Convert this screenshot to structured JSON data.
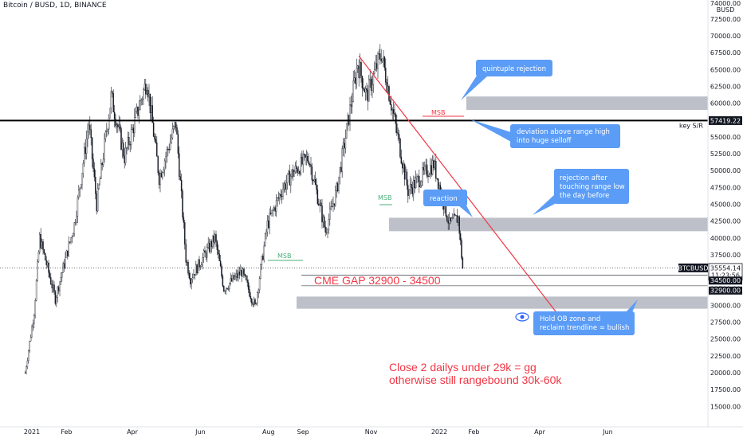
{
  "header": {
    "symbol": "Bitcoin / BUSD, 1D, BINANCE"
  },
  "axis": {
    "currency": "BUSD",
    "top_label": "74000.00",
    "y_ticks": [
      72500,
      70000,
      67500,
      65000,
      62500,
      60000,
      57500,
      55000,
      52500,
      50000,
      47500,
      45000,
      42500,
      40000,
      37500,
      35000,
      32500,
      30000,
      27500,
      25000,
      22500,
      20000,
      17500,
      15000
    ],
    "x_ticks": [
      {
        "label": "2021",
        "date": "2021-01-01"
      },
      {
        "label": "Feb",
        "date": "2021-02-01"
      },
      {
        "label": "Apr",
        "date": "2021-04-01"
      },
      {
        "label": "Jun",
        "date": "2021-06-01"
      },
      {
        "label": "Aug",
        "date": "2021-08-01"
      },
      {
        "label": "Sep",
        "date": "2021-09-01"
      },
      {
        "label": "Nov",
        "date": "2021-11-01"
      },
      {
        "label": "2022",
        "date": "2022-01-01"
      },
      {
        "label": "Feb",
        "date": "2022-02-01"
      },
      {
        "label": "Apr",
        "date": "2022-04-01"
      },
      {
        "label": "Jun",
        "date": "2022-06-01"
      }
    ]
  },
  "price_labels": {
    "key_sr": {
      "value": "57419.22",
      "text": "key S/R"
    },
    "current": {
      "value": "35554.14",
      "text": "BTCBUSD",
      "countdown": "11:23:56"
    },
    "gap_top": "34500.00",
    "gap_bottom": "32900.00"
  },
  "annotations": {
    "quintuple": "quintuple rejection",
    "deviation_1": "deviation above range high",
    "deviation_2": "into huge selloff",
    "reaction": "reaction",
    "rejection_1": "rejection after",
    "rejection_2": "touching range low",
    "rejection_3": "the day before",
    "hold_1": "Hold OB zone and",
    "hold_2": "reclaim trendline = bullish",
    "cme_gap": "CME GAP 32900 - 34500",
    "close_1": "Close 2 dailys under 29k = gg",
    "close_2": "otherwise still rangebound 30k-60k",
    "msb_1": "MSB",
    "msb_2": "MSB",
    "msb_3": "MSB"
  },
  "colors": {
    "up": "#ffffff",
    "down": "#131722",
    "wick": "#131722",
    "zone": "#b2b5be",
    "accent": "#f23645",
    "callout": "#5b9cf6"
  },
  "chart_data": {
    "type": "candlestick",
    "title": "Bitcoin / BUSD, 1D, BINANCE",
    "ylim": [
      12500,
      75000
    ],
    "key_level": 57419.22,
    "last_price": 35554.14,
    "zones": [
      {
        "from": 59000,
        "to": 61000
      },
      {
        "from": 41000,
        "to": 43000
      },
      {
        "from": 29500,
        "to": 31300
      }
    ],
    "cme_gap": [
      32900,
      34500
    ],
    "trendline": [
      {
        "date": "2021-10-21",
        "price": 67000
      },
      {
        "date": "2022-04-25",
        "price": 27000
      }
    ],
    "anchors": [
      {
        "date": "2020-12-26",
        "price": 20000
      },
      {
        "date": "2021-01-03",
        "price": 29000
      },
      {
        "date": "2021-01-08",
        "price": 40000
      },
      {
        "date": "2021-01-22",
        "price": 31000
      },
      {
        "date": "2021-02-08",
        "price": 42000
      },
      {
        "date": "2021-02-21",
        "price": 57000
      },
      {
        "date": "2021-02-28",
        "price": 45000
      },
      {
        "date": "2021-03-13",
        "price": 61000
      },
      {
        "date": "2021-03-25",
        "price": 52000
      },
      {
        "date": "2021-04-14",
        "price": 63500
      },
      {
        "date": "2021-04-25",
        "price": 49000
      },
      {
        "date": "2021-05-10",
        "price": 57000
      },
      {
        "date": "2021-05-19",
        "price": 37000
      },
      {
        "date": "2021-05-23",
        "price": 34000
      },
      {
        "date": "2021-06-14",
        "price": 40000
      },
      {
        "date": "2021-06-22",
        "price": 32500
      },
      {
        "date": "2021-07-08",
        "price": 35000
      },
      {
        "date": "2021-07-20",
        "price": 29800
      },
      {
        "date": "2021-07-31",
        "price": 42000
      },
      {
        "date": "2021-08-14",
        "price": 47500
      },
      {
        "date": "2021-08-22",
        "price": 49500
      },
      {
        "date": "2021-09-06",
        "price": 52000
      },
      {
        "date": "2021-09-21",
        "price": 41000
      },
      {
        "date": "2021-10-01",
        "price": 47000
      },
      {
        "date": "2021-10-20",
        "price": 66000
      },
      {
        "date": "2021-10-28",
        "price": 61000
      },
      {
        "date": "2021-11-10",
        "price": 67500
      },
      {
        "date": "2021-11-26",
        "price": 54000
      },
      {
        "date": "2021-12-04",
        "price": 47000
      },
      {
        "date": "2021-12-27",
        "price": 51000
      },
      {
        "date": "2022-01-10",
        "price": 42000
      },
      {
        "date": "2022-01-18",
        "price": 43000
      },
      {
        "date": "2022-01-22",
        "price": 35500
      }
    ]
  }
}
